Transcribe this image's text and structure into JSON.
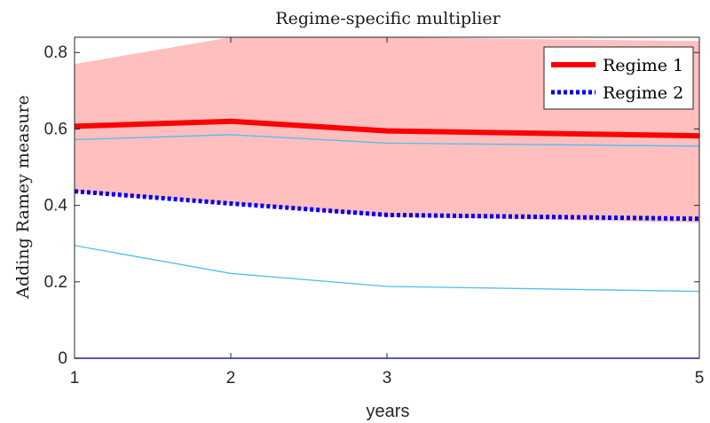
{
  "chart_data": {
    "type": "line",
    "title": "Regime-specific multiplier",
    "xlabel": "years",
    "ylabel": "Adding Ramey measure",
    "xlim": [
      1,
      5
    ],
    "ylim": [
      0,
      0.84
    ],
    "xticks": [
      1,
      2,
      3,
      5
    ],
    "yticks": [
      0,
      0.2,
      0.4,
      0.6,
      0.8
    ],
    "ytick_labels": [
      "0",
      "0.2",
      "0.4",
      "0.6",
      "0.8"
    ],
    "grid": false,
    "legend_position": "top-right",
    "x": [
      1,
      2,
      3,
      5
    ],
    "series": [
      {
        "name": "Regime 1",
        "values": [
          0.607,
          0.62,
          0.595,
          0.582
        ],
        "color": "#ff0000",
        "style": "solid-thick",
        "band": {
          "lower": [
            0.435,
            0.405,
            0.37,
            0.355
          ],
          "upper": [
            0.77,
            0.84,
            0.84,
            0.83
          ],
          "color": "#ffbfbf"
        }
      },
      {
        "name": "Regime 2",
        "values": [
          0.437,
          0.405,
          0.375,
          0.365
        ],
        "color": "#0000ee",
        "style": "dotted-thick",
        "band": {
          "lower": [
            0.295,
            0.222,
            0.188,
            0.175
          ],
          "upper": [
            0.572,
            0.585,
            0.563,
            0.555
          ],
          "color": "#4dbeee"
        }
      }
    ]
  }
}
